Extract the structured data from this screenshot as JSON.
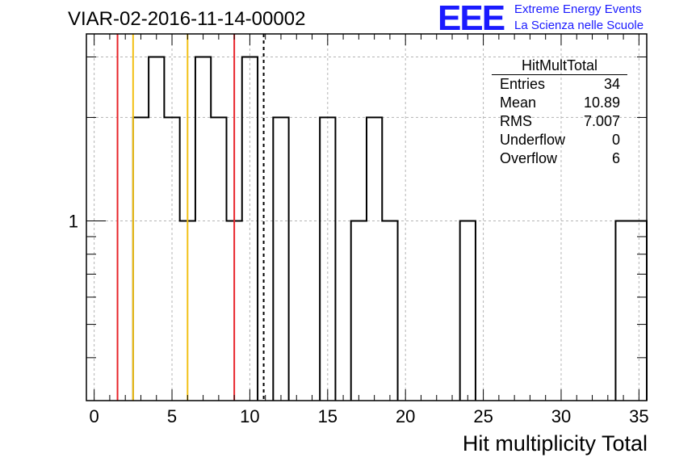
{
  "header": {
    "title": "VIAR-02-2016-11-14-00002",
    "logo_text": "EEE",
    "logo_line1": "Extreme Energy Events",
    "logo_line2": "La Scienza nelle Scuole",
    "logo_color": "#1a1aff"
  },
  "stats_box": {
    "name": "HitMultTotal",
    "rows": [
      {
        "label": "Entries",
        "value": "34"
      },
      {
        "label": "Mean",
        "value": "10.89"
      },
      {
        "label": "RMS",
        "value": "7.007"
      },
      {
        "label": "Underflow",
        "value": "0"
      },
      {
        "label": "Overflow",
        "value": "6"
      }
    ]
  },
  "chart_data": {
    "type": "histogram",
    "title": "VIAR-02-2016-11-14-00002",
    "xlabel": "Hit multiplicity Total",
    "ylabel": "",
    "xlim": [
      -0.5,
      35.5
    ],
    "ylim": [
      0.3,
      3.5
    ],
    "yscale": "log",
    "grid": true,
    "bin_width": 1,
    "bins": [
      {
        "low": 2.5,
        "high": 3.5,
        "count": 2
      },
      {
        "low": 3.5,
        "high": 4.5,
        "count": 3
      },
      {
        "low": 4.5,
        "high": 5.5,
        "count": 2
      },
      {
        "low": 5.5,
        "high": 6.5,
        "count": 1
      },
      {
        "low": 6.5,
        "high": 7.5,
        "count": 3
      },
      {
        "low": 7.5,
        "high": 8.5,
        "count": 2
      },
      {
        "low": 8.5,
        "high": 9.5,
        "count": 1
      },
      {
        "low": 9.5,
        "high": 10.5,
        "count": 3
      },
      {
        "low": 11.5,
        "high": 12.5,
        "count": 2
      },
      {
        "low": 14.5,
        "high": 15.5,
        "count": 2
      },
      {
        "low": 16.5,
        "high": 17.5,
        "count": 1
      },
      {
        "low": 17.5,
        "high": 18.5,
        "count": 2
      },
      {
        "low": 18.5,
        "high": 19.5,
        "count": 1
      },
      {
        "low": 23.5,
        "high": 24.5,
        "count": 1
      },
      {
        "low": 33.5,
        "high": 34.5,
        "count": 1
      },
      {
        "low": 34.5,
        "high": 35.5,
        "count": 1
      }
    ],
    "x_ticks": [
      0,
      5,
      10,
      15,
      20,
      25,
      30,
      35
    ],
    "y_ticks": [
      1
    ],
    "y_tick_labels": [
      "1"
    ],
    "vertical_lines": [
      {
        "x": 1.5,
        "color": "#e8242a",
        "style": "solid"
      },
      {
        "x": 2.5,
        "color": "#f2c014",
        "style": "solid"
      },
      {
        "x": 6.0,
        "color": "#f2c014",
        "style": "solid"
      },
      {
        "x": 9.0,
        "color": "#e8242a",
        "style": "solid"
      },
      {
        "x": 10.89,
        "color": "#000000",
        "style": "dashed"
      }
    ]
  }
}
